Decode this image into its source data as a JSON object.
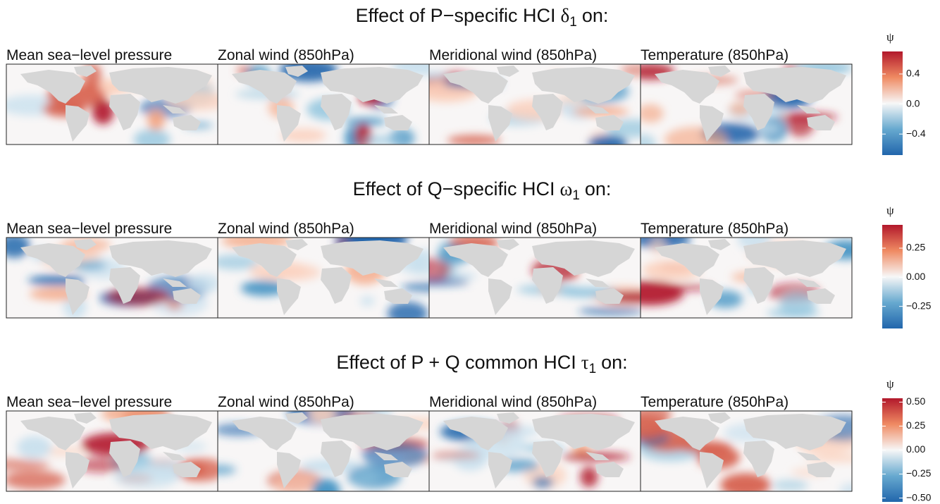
{
  "rows": [
    {
      "title": {
        "prefix": "Effect of P−specific HCI",
        "symbol": "δ",
        "subscript": "1",
        "suffix": "on:"
      },
      "panels": [
        "Mean sea−level pressure",
        "Zonal wind (850hPa)",
        "Meridional wind (850hPa)",
        "Temperature (850hPa)"
      ],
      "colorbar": {
        "label": "ψ",
        "range": [
          -0.68,
          0.7
        ],
        "ticks": [
          {
            "value": 0.4,
            "label": "0.4"
          },
          {
            "value": 0,
            "label": "0.0"
          },
          {
            "value": -0.4,
            "label": "−0.4"
          }
        ]
      }
    },
    {
      "title": {
        "prefix": "Effect of Q−specific HCI",
        "symbol": "ω",
        "subscript": "1",
        "suffix": "on:"
      },
      "panels": [
        "Mean sea−level pressure",
        "Zonal wind (850hPa)",
        "Meridional wind (850hPa)",
        "Temperature (850hPa)"
      ],
      "colorbar": {
        "label": "ψ",
        "range": [
          -0.44,
          0.45
        ],
        "ticks": [
          {
            "value": 0.25,
            "label": "0.25"
          },
          {
            "value": 0,
            "label": "0.00"
          },
          {
            "value": -0.25,
            "label": "−0.25"
          }
        ]
      }
    },
    {
      "title": {
        "prefix": "Effect of P + Q common HCI",
        "symbol": "τ",
        "subscript": "1",
        "suffix": "on:"
      },
      "panels": [
        "Mean sea−level pressure",
        "Zonal wind (850hPa)",
        "Meridional wind (850hPa)",
        "Temperature (850hPa)"
      ],
      "colorbar": {
        "label": "ψ",
        "range": [
          -0.54,
          0.54
        ],
        "ticks": [
          {
            "value": 0.5,
            "label": "0.50"
          },
          {
            "value": 0.25,
            "label": "0.25"
          },
          {
            "value": 0,
            "label": "0.00"
          },
          {
            "value": -0.25,
            "label": "−0.25"
          },
          {
            "value": -0.5,
            "label": "−0.50"
          }
        ]
      }
    }
  ]
}
